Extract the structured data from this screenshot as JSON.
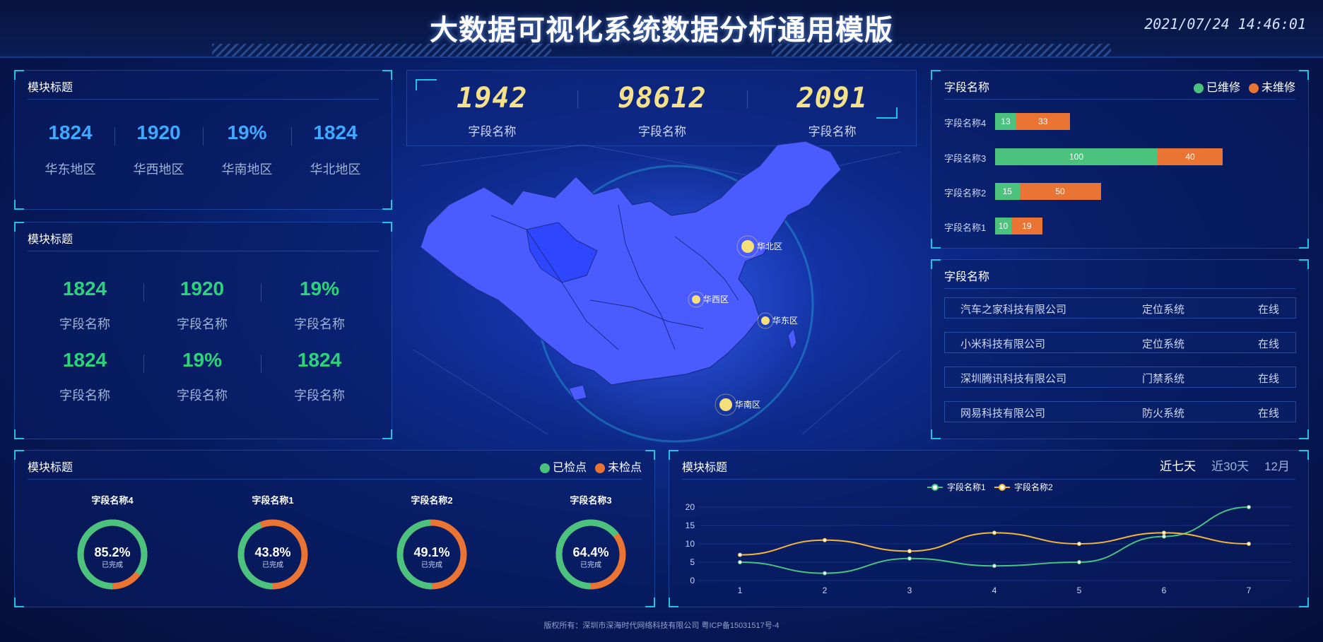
{
  "header": {
    "title": "大数据可视化系统数据分析通用模版",
    "datetime": "2021/07/24 14:46:01"
  },
  "panel_regions": {
    "title": "模块标题",
    "items": [
      {
        "value": "1824",
        "label": "华东地区"
      },
      {
        "value": "1920",
        "label": "华西地区"
      },
      {
        "value": "19%",
        "label": "华南地区"
      },
      {
        "value": "1824",
        "label": "华北地区"
      }
    ]
  },
  "panel_fields": {
    "title": "模块标题",
    "items": [
      {
        "value": "1824",
        "label": "字段名称"
      },
      {
        "value": "1920",
        "label": "字段名称"
      },
      {
        "value": "19%",
        "label": "字段名称"
      },
      {
        "value": "1824",
        "label": "字段名称"
      },
      {
        "value": "19%",
        "label": "字段名称"
      },
      {
        "value": "1824",
        "label": "字段名称"
      }
    ]
  },
  "center_stats": [
    {
      "value": "1942",
      "label": "字段名称"
    },
    {
      "value": "98612",
      "label": "字段名称"
    },
    {
      "value": "2091",
      "label": "字段名称"
    }
  ],
  "map": {
    "markers": [
      {
        "label": "华北区"
      },
      {
        "label": "华西区"
      },
      {
        "label": "华东区"
      },
      {
        "label": "华南区"
      }
    ],
    "colors": {
      "land": "#4a5cff",
      "highlight": "#2f46ff",
      "marker": "#f6e07a"
    }
  },
  "repair_panel": {
    "title": "字段名称",
    "legend": [
      {
        "label": "已维修",
        "color": "#4cc27f"
      },
      {
        "label": "未维修",
        "color": "#ea7433"
      }
    ]
  },
  "company_panel": {
    "title": "字段名称",
    "rows": [
      {
        "company": "汽车之家科技有限公司",
        "system": "定位系统",
        "status": "在线"
      },
      {
        "company": "小米科技有限公司",
        "system": "定位系统",
        "status": "在线"
      },
      {
        "company": "深圳腾讯科技有限公司",
        "system": "门禁系统",
        "status": "在线"
      },
      {
        "company": "网易科技有限公司",
        "system": "防火系统",
        "status": "在线"
      }
    ]
  },
  "donut_panel": {
    "title": "模块标题",
    "legend": [
      {
        "label": "已检点",
        "color": "#4cc27f"
      },
      {
        "label": "未检点",
        "color": "#ea7433"
      }
    ],
    "done_label": "已完成"
  },
  "line_panel": {
    "title": "模块标题",
    "tabs": [
      {
        "label": "近七天",
        "active": true
      },
      {
        "label": "近30天",
        "active": false
      },
      {
        "label": "12月",
        "active": false
      }
    ]
  },
  "chart_data": [
    {
      "type": "bar",
      "stacked": true,
      "orientation": "horizontal",
      "categories": [
        "字段名称4",
        "字段名称3",
        "字段名称2",
        "字段名称1"
      ],
      "series": [
        {
          "name": "已维修",
          "values": [
            13,
            100,
            15,
            10
          ],
          "color": "#4cc27f"
        },
        {
          "name": "未维修",
          "values": [
            33,
            40,
            50,
            19
          ],
          "color": "#ea7433"
        }
      ]
    },
    {
      "type": "pie",
      "variant": "donut",
      "items": [
        {
          "name": "字段名称4",
          "percent": 85.2,
          "label": "85.2%"
        },
        {
          "name": "字段名称1",
          "percent": 43.8,
          "label": "43.8%"
        },
        {
          "name": "字段名称2",
          "percent": 49.1,
          "label": "49.1%"
        },
        {
          "name": "字段名称3",
          "percent": 64.4,
          "label": "64.4%"
        }
      ]
    },
    {
      "type": "line",
      "x": [
        1,
        2,
        3,
        4,
        5,
        6,
        7
      ],
      "ylim": [
        0,
        20
      ],
      "yticks": [
        0,
        5,
        10,
        15,
        20
      ],
      "series": [
        {
          "name": "字段名称1",
          "values": [
            5,
            2,
            6,
            4,
            5,
            12,
            20
          ],
          "color": "#4cc27f"
        },
        {
          "name": "字段名称2",
          "values": [
            7,
            11,
            8,
            13,
            10,
            13,
            10
          ],
          "color": "#f2b73a"
        }
      ]
    }
  ],
  "footer": {
    "text": "版权所有：深圳市深海时代网络科技有限公司 粤ICP备15031517号-4"
  }
}
